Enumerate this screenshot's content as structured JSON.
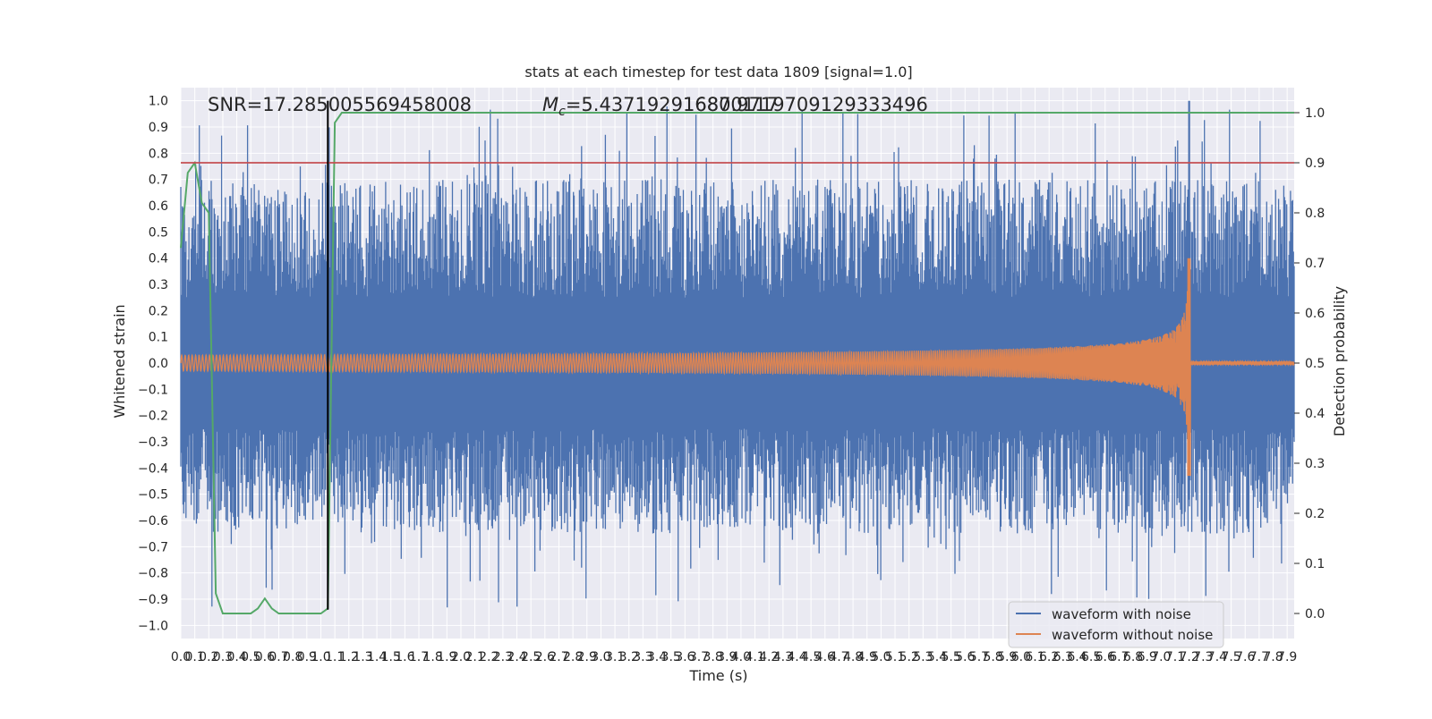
{
  "chart_data": {
    "type": "line",
    "title": "stats at each timestep for test data 1809 [signal=1.0]",
    "xlabel": "Time (s)",
    "ylabel_left": "Whitened strain",
    "ylabel_right": "Detection probability",
    "xlim": [
      0.0,
      7.95
    ],
    "ylim_left": [
      -1.05,
      1.05
    ],
    "ylim_right": [
      -0.05,
      1.05
    ],
    "x_ticks": [
      0.0,
      0.1,
      0.2,
      0.3,
      0.4,
      0.5,
      0.6,
      0.7,
      0.8,
      0.9,
      1.0,
      1.1,
      1.2,
      1.3,
      1.4,
      1.5,
      1.6,
      1.7,
      1.8,
      1.9,
      2.0,
      2.1,
      2.2,
      2.3,
      2.4,
      2.5,
      2.6,
      2.7,
      2.8,
      2.9,
      3.0,
      3.1,
      3.2,
      3.3,
      3.4,
      3.5,
      3.6,
      3.7,
      3.8,
      3.9,
      4.0,
      4.1,
      4.2,
      4.3,
      4.4,
      4.5,
      4.6,
      4.7,
      4.8,
      4.9,
      5.0,
      5.1,
      5.2,
      5.3,
      5.4,
      5.5,
      5.6,
      5.7,
      5.8,
      5.9,
      6.0,
      6.1,
      6.2,
      6.3,
      6.4,
      6.5,
      6.6,
      6.7,
      6.8,
      6.9,
      7.0,
      7.1,
      7.2,
      7.3,
      7.4,
      7.5,
      7.6,
      7.7,
      7.8,
      7.9
    ],
    "y_ticks_left": [
      1.0,
      0.9,
      0.8,
      0.7,
      0.6,
      0.5,
      0.4,
      0.3,
      0.2,
      0.1,
      0.0,
      -0.1,
      -0.2,
      -0.3,
      -0.4,
      -0.5,
      -0.6,
      -0.7,
      -0.8,
      -0.9,
      -1.0
    ],
    "y_ticks_right": [
      1.0,
      0.9,
      0.8,
      0.7,
      0.6,
      0.5,
      0.4,
      0.3,
      0.2,
      0.1,
      0.0
    ],
    "annotations": {
      "snr": "SNR=17.285005569458008",
      "mc": "M",
      "mc_sub": "c",
      "mc_value": "=5.437192916870117",
      "overlap": "1680.9719709129333496"
    },
    "legend": {
      "placement": "lower-right",
      "entries": [
        "waveform with noise",
        "waveform without noise"
      ]
    },
    "colors": {
      "noise": "#4c72b0",
      "clean": "#dd8452",
      "prob": "#55a868",
      "threshold": "#c44e52",
      "marker": "#000000",
      "axes_bg": "#eaeaf2",
      "grid": "#ffffff"
    },
    "series": [
      {
        "name": "waveform with noise",
        "kind": "noise",
        "amplitude_max": 0.98,
        "amplitude_min": -0.94,
        "peak_time": 7.2,
        "peak_value": 1.0
      },
      {
        "name": "waveform without noise",
        "kind": "chirp",
        "start_amplitude": 0.03,
        "peak_time": 7.2,
        "peak_max": 0.4,
        "peak_min": -0.43,
        "post_merger_amplitude": 0.005
      },
      {
        "name": "detection probability",
        "axis": "right",
        "x": [
          0.0,
          0.05,
          0.1,
          0.15,
          0.2,
          0.25,
          0.3,
          0.35,
          0.4,
          0.45,
          0.5,
          0.55,
          0.6,
          0.65,
          0.7,
          0.75,
          0.8,
          0.85,
          0.9,
          0.95,
          1.0,
          1.05,
          1.1,
          1.15,
          1.2,
          7.95
        ],
        "values": [
          0.73,
          0.88,
          0.9,
          0.82,
          0.8,
          0.04,
          0.0,
          0.0,
          0.0,
          0.0,
          0.0,
          0.01,
          0.03,
          0.01,
          0.0,
          0.0,
          0.0,
          0.0,
          0.0,
          0.0,
          0.0,
          0.01,
          0.98,
          1.0,
          1.0,
          1.0
        ]
      }
    ],
    "threshold_line": {
      "axis": "right",
      "value": 0.9
    },
    "marker_line": {
      "x": 1.05,
      "y_from": -0.94,
      "y_to": 1.0
    }
  }
}
